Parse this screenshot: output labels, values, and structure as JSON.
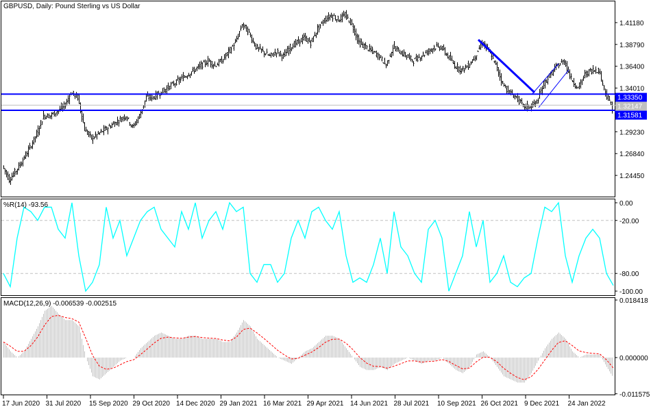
{
  "window": {
    "title": "GBPUSD, Daily:  Pound Sterling vs US Dollar"
  },
  "price_pane": {
    "y_ticks": [
      "1.41180",
      "1.38790",
      "1.36400",
      "1.34010",
      "1.29230",
      "1.26840",
      "1.24450"
    ],
    "y_tick_values": [
      1.4118,
      1.3879,
      1.364,
      1.3401,
      1.2923,
      1.2684,
      1.2445
    ],
    "levels": [
      {
        "label": "1.33350",
        "value": 1.3335,
        "color": "#0000ff"
      },
      {
        "label": "1.32147",
        "value": 1.32147,
        "color": "#c0c0c0"
      },
      {
        "label": "1.31581",
        "value": 1.31581,
        "color": "#0000ff"
      }
    ]
  },
  "wr_pane": {
    "title": "%R(14) -93.56",
    "y_ticks": [
      "0.00",
      "-20.00",
      "-80.00",
      "-100.00"
    ],
    "y_tick_values": [
      0,
      -20,
      -80,
      -100
    ],
    "color": "#00ffff"
  },
  "macd_pane": {
    "title": "MACD(12,26,9) -0.006539 -0.002515",
    "y_ticks": [
      "0.018418",
      "0.000000",
      "-0.011575"
    ],
    "y_tick_values": [
      0.018418,
      0,
      -0.011575
    ],
    "hist_color": "#c0c0c0",
    "signal_color": "#ff0000"
  },
  "x_ticks": [
    "17 Jun 2020",
    "31 Jul 2020",
    "15 Sep 2020",
    "29 Oct 2020",
    "14 Dec 2020",
    "29 Jan 2021",
    "16 Mar 2021",
    "29 Apr 2021",
    "14 Jun 2021",
    "28 Jul 2021",
    "10 Sep 2021",
    "26 Oct 2021",
    "9 Dec 2021",
    "24 Jan 2022"
  ],
  "chart_data": [
    {
      "type": "ohlc",
      "title": "GBPUSD, Daily:  Pound Sterling vs US Dollar",
      "ylim": [
        1.2326,
        1.4286
      ],
      "close": [
        1.255,
        1.24,
        1.25,
        1.262,
        1.275,
        1.29,
        1.31,
        1.31,
        1.315,
        1.32,
        1.335,
        1.33,
        1.295,
        1.285,
        1.29,
        1.295,
        1.3,
        1.305,
        1.31,
        1.297,
        1.31,
        1.33,
        1.33,
        1.335,
        1.34,
        1.345,
        1.35,
        1.355,
        1.36,
        1.365,
        1.37,
        1.365,
        1.37,
        1.38,
        1.39,
        1.41,
        1.4,
        1.385,
        1.38,
        1.375,
        1.38,
        1.375,
        1.385,
        1.39,
        1.395,
        1.39,
        1.405,
        1.415,
        1.42,
        1.415,
        1.42,
        1.41,
        1.39,
        1.385,
        1.38,
        1.375,
        1.365,
        1.385,
        1.38,
        1.375,
        1.37,
        1.375,
        1.38,
        1.385,
        1.385,
        1.375,
        1.365,
        1.36,
        1.365,
        1.375,
        1.39,
        1.38,
        1.365,
        1.345,
        1.335,
        1.33,
        1.32,
        1.32,
        1.325,
        1.345,
        1.355,
        1.365,
        1.37,
        1.35,
        1.34,
        1.355,
        1.36,
        1.36,
        1.335,
        1.318
      ]
    },
    {
      "type": "line",
      "title": "%R(14) -93.56",
      "ylim": [
        -100,
        0
      ],
      "values": [
        -80,
        -95,
        -40,
        -5,
        -10,
        -20,
        -5,
        -5,
        -30,
        -40,
        0,
        -60,
        -100,
        -90,
        -70,
        -5,
        -40,
        -20,
        -60,
        -40,
        -20,
        -10,
        -5,
        -30,
        -40,
        -50,
        -10,
        -30,
        0,
        -40,
        -20,
        -10,
        -30,
        0,
        -10,
        -5,
        -80,
        -90,
        -70,
        -70,
        -90,
        -80,
        -40,
        -20,
        -40,
        -10,
        -5,
        -20,
        -30,
        -10,
        -60,
        -90,
        -85,
        -90,
        -70,
        -40,
        -80,
        -10,
        -50,
        -60,
        -80,
        -90,
        -30,
        -20,
        -40,
        -100,
        -80,
        -60,
        -10,
        -50,
        -20,
        -90,
        -80,
        -60,
        -90,
        -95,
        -85,
        -80,
        -40,
        -5,
        -10,
        0,
        -60,
        -90,
        -60,
        -40,
        -30,
        -40,
        -80,
        -93.56
      ]
    },
    {
      "type": "bar+line",
      "title": "MACD(12,26,9) -0.006539 -0.002515",
      "ylim": [
        -0.011575,
        0.018418
      ],
      "macd": [
        0.005,
        0.002,
        0.0,
        0.002,
        0.006,
        0.01,
        0.015,
        0.0165,
        0.014,
        0.012,
        0.012,
        0.01,
        0.0,
        -0.006,
        -0.007,
        -0.005,
        -0.003,
        -0.001,
        0.0,
        0.0,
        0.003,
        0.005,
        0.007,
        0.008,
        0.007,
        0.006,
        0.006,
        0.007,
        0.007,
        0.006,
        0.006,
        0.006,
        0.005,
        0.005,
        0.008,
        0.012,
        0.01,
        0.006,
        0.004,
        0.002,
        0.0,
        -0.001,
        -0.002,
        0.0,
        0.002,
        0.003,
        0.005,
        0.007,
        0.007,
        0.006,
        0.003,
        0.0,
        -0.003,
        -0.004,
        -0.004,
        -0.003,
        -0.004,
        -0.002,
        -0.001,
        0.0,
        -0.001,
        -0.002,
        -0.001,
        -0.001,
        0.0,
        -0.002,
        -0.004,
        -0.005,
        -0.003,
        0.001,
        0.002,
        0.0,
        -0.003,
        -0.006,
        -0.007,
        -0.008,
        -0.008,
        -0.005,
        -0.001,
        0.003,
        0.006,
        0.008,
        0.006,
        0.002,
        0.0,
        0.001,
        0.001,
        0.001,
        -0.003,
        -0.006539
      ],
      "signal_last": -0.002515
    }
  ]
}
